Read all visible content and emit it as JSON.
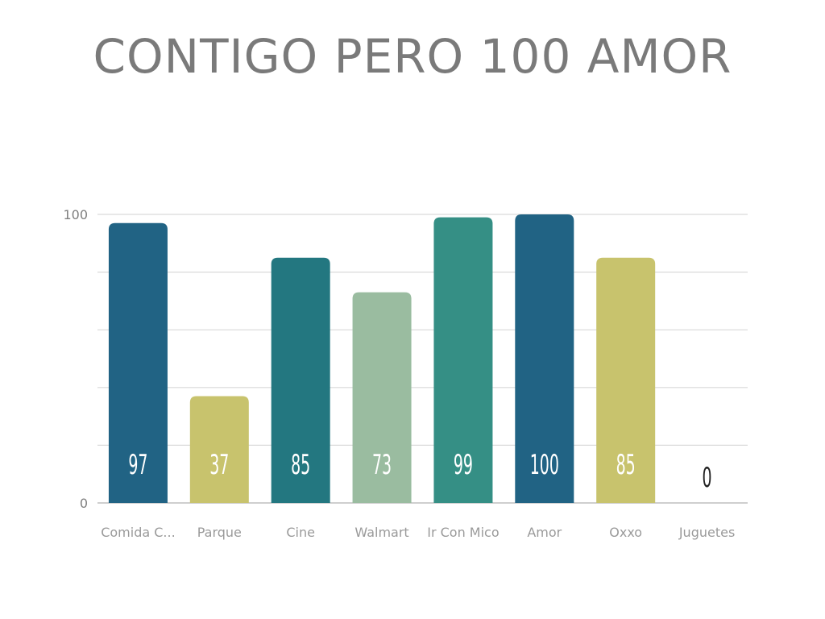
{
  "chart_data": {
    "type": "bar",
    "title": "CONTIGO PERO 100 AMOR",
    "categories": [
      "Comida C...",
      "Parque",
      "Cine",
      "Walmart",
      "Ir Con Mico",
      "Amor",
      "Oxxo",
      "Juguetes"
    ],
    "values": [
      97,
      37,
      85,
      73,
      99,
      100,
      85,
      0
    ],
    "value_labels": [
      "97",
      "37",
      "85",
      "73",
      "99",
      "100",
      "85",
      "0"
    ],
    "ytick_labels": [
      "0",
      "100"
    ],
    "ylim": [
      0,
      100
    ],
    "grid": true,
    "legend": "none",
    "xlabel": "",
    "ylabel": "",
    "colors": [
      "#216384",
      "#c8c36d",
      "#237780",
      "#9abca0",
      "#358f85",
      "#216384",
      "#c8c36d",
      "#216384"
    ],
    "gridline_color": "#d9d9d9",
    "axis_line_color": "#bfbfbf"
  }
}
